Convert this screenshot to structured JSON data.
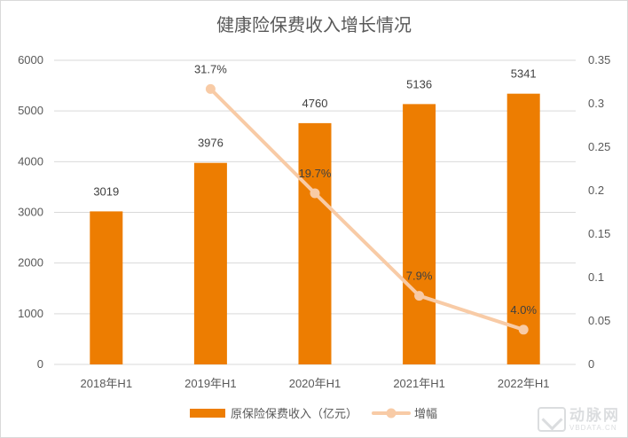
{
  "chart_data": {
    "type": "bar",
    "title": "健康险保费收入增长情况",
    "categories": [
      "2018年H1",
      "2019年H1",
      "2020年H1",
      "2021年H1",
      "2022年H1"
    ],
    "series": [
      {
        "name": "原保险保费收入（亿元）",
        "type": "bar",
        "axis": "left",
        "values": [
          3019,
          3976,
          4760,
          5136,
          5341
        ],
        "labels": [
          "3019",
          "3976",
          "4760",
          "5136",
          "5341"
        ],
        "color": "#ed7d01"
      },
      {
        "name": "增幅",
        "type": "line",
        "axis": "right",
        "values": [
          null,
          0.317,
          0.197,
          0.079,
          0.04
        ],
        "labels": [
          "",
          "31.7%",
          "19.7%",
          "7.9%",
          "4.0%"
        ],
        "color": "#f8cba6"
      }
    ],
    "y_left": {
      "range": [
        0,
        6000
      ],
      "ticks": [
        "0",
        "1000",
        "2000",
        "3000",
        "4000",
        "5000",
        "6000"
      ]
    },
    "y_right": {
      "range": [
        0,
        0.35
      ],
      "ticks": [
        "0",
        "0.05",
        "0.1",
        "0.15",
        "0.2",
        "0.25",
        "0.3",
        "0.35"
      ]
    },
    "grid": true,
    "legend": "bottom"
  },
  "watermark": {
    "cn": "动脉网",
    "en": "VBDATA.CN"
  }
}
